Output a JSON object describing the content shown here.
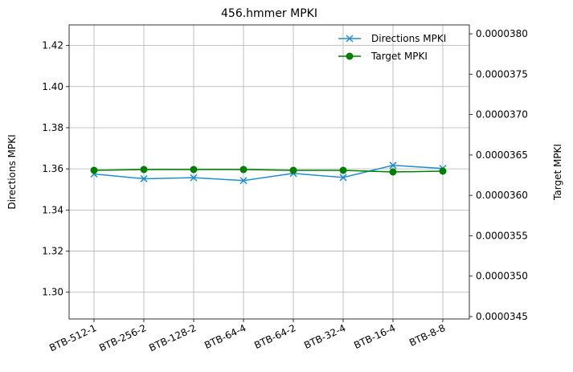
{
  "chart_data": {
    "type": "line",
    "title": "456.hmmer MPKI",
    "categories": [
      "BTB-512-1",
      "BTB-256-2",
      "BTB-128-2",
      "BTB-64-4",
      "BTB-64-2",
      "BTB-32-4",
      "BTB-16-4",
      "BTB-8-8"
    ],
    "left_axis": {
      "label": "Directions MPKI",
      "ylim": [
        1.287,
        1.43
      ],
      "ticks": [
        1.3,
        1.32,
        1.34,
        1.36,
        1.38,
        1.4,
        1.42
      ],
      "tick_labels": [
        "1.30",
        "1.32",
        "1.34",
        "1.36",
        "1.38",
        "1.40",
        "1.42"
      ]
    },
    "right_axis": {
      "label": "Target MPKI",
      "ylim": [
        3.447e-05,
        3.811e-05
      ],
      "ticks": [
        3.45e-05,
        3.5e-05,
        3.55e-05,
        3.6e-05,
        3.65e-05,
        3.7e-05,
        3.75e-05,
        3.8e-05
      ],
      "tick_labels": [
        "0.0000345",
        "0.0000350",
        "0.0000355",
        "0.0000360",
        "0.0000365",
        "0.0000370",
        "0.0000375",
        "0.0000380"
      ]
    },
    "series": [
      {
        "name": "Directions MPKI",
        "axis": "left",
        "color": "#1f8ecf",
        "marker": "x",
        "values": [
          1.3575,
          1.3552,
          1.3557,
          1.3543,
          1.3578,
          1.3558,
          1.3617,
          1.3602
        ]
      },
      {
        "name": "Target MPKI",
        "axis": "right",
        "color": "#008000",
        "marker": "o",
        "values": [
          3.631e-05,
          3.632e-05,
          3.632e-05,
          3.632e-05,
          3.631e-05,
          3.631e-05,
          3.629e-05,
          3.63e-05
        ]
      }
    ],
    "grid": true,
    "legend": "top-right"
  }
}
